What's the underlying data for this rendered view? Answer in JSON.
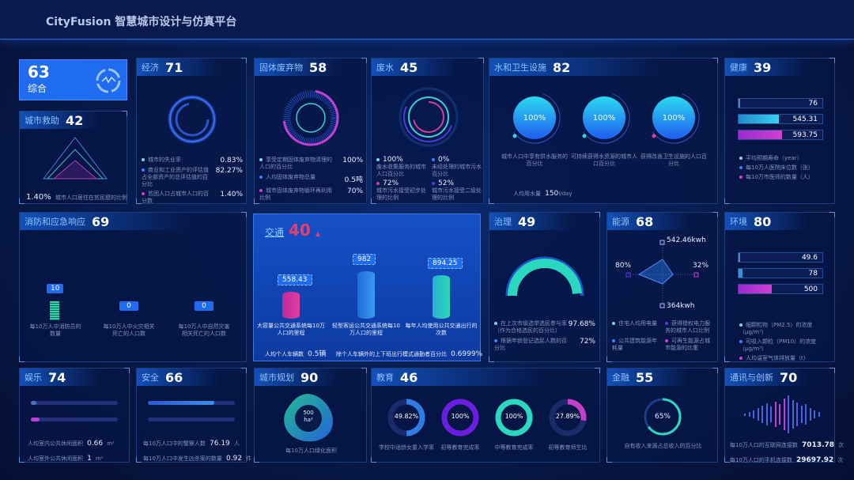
{
  "app": {
    "title": "CityFusion 智慧城市设计与仿真平台"
  },
  "colors": {
    "accent": "#1f6cf0",
    "cyan": "#2ad8e0",
    "magenta": "#d13fd0",
    "traffic_score": "#e2406e"
  },
  "overall": {
    "score": "63",
    "label": "综合",
    "icon": "city-network-icon"
  },
  "aid": {
    "label": "城市救助",
    "score": "42",
    "value": "1.40%",
    "desc": "城市人口居住在贫民窟的比例"
  },
  "economy": {
    "label": "经济",
    "score": "71",
    "items": [
      {
        "text": "城市的失业率",
        "value": "0.83%"
      },
      {
        "text": "商业和工业资产的评估值占全部资产的总评估值的百分比",
        "value": "82.27%"
      },
      {
        "text": "贫困人口占城市人口的百分数",
        "value": "1.40%"
      }
    ]
  },
  "waste": {
    "label": "固体废弃物",
    "score": "58",
    "items": [
      {
        "text": "享受定期固体废弃物清理的人口的百分比",
        "value": "100%"
      },
      {
        "text": "人均固体废弃物总量",
        "value": "0.5吨"
      },
      {
        "text": "城市固体废弃物循环再利用比例",
        "value": "70%"
      }
    ]
  },
  "wastewater": {
    "label": "废水",
    "score": "45",
    "items": [
      {
        "value": "100%",
        "text": "废水收集服务的城市人口百分比"
      },
      {
        "value": "0%",
        "text": "未经处理的城市污水百分比"
      },
      {
        "value": "72%",
        "text": "城市污水接受初步处理的比例"
      },
      {
        "value": "52%",
        "text": "城市污水接受二级处理的比例"
      }
    ]
  },
  "water": {
    "label": "水和卫生设施",
    "score": "82",
    "items": [
      {
        "value": "100%",
        "text": "城市人口中享有供水服务的百分比"
      },
      {
        "value": "100%",
        "text": "可持续获得水资源的城市人口百分比"
      },
      {
        "value": "100%",
        "text": "获得改善卫生设施的人口百分比"
      }
    ],
    "usage_label": "人均用水量",
    "usage_value": "150",
    "usage_unit": "l/day"
  },
  "health": {
    "label": "健康",
    "score": "39",
    "bars": [
      {
        "value": "76",
        "fill": 0.02
      },
      {
        "value": "545.31",
        "fill": 0.48
      },
      {
        "value": "593.75",
        "fill": 0.52
      }
    ],
    "legend": [
      "平均预期寿命（year）",
      "每10万人医院床位数（张）",
      "每10万市医师的数量（人）"
    ]
  },
  "fire": {
    "label": "消防和应急响应",
    "score": "69",
    "items": [
      {
        "value": "10",
        "text": "每10万人中消防员的数量"
      },
      {
        "value": "0",
        "text": "每10万人中火灾相关死亡的人口数"
      },
      {
        "value": "0",
        "text": "每10万人中自然灾害相关死亡的人口数"
      }
    ]
  },
  "traffic": {
    "label": "交通",
    "score": "40",
    "trend": "▲",
    "items": [
      {
        "value": "558.43",
        "text": "大容量公共交通系统每10万人口的里程"
      },
      {
        "value": "982",
        "text": "轻型客运公共交通系统每10万人口的里程"
      },
      {
        "value": "894.25",
        "text": "每年人均使用公共交通出行的次数"
      }
    ],
    "car_label": "人均个人车辆数",
    "car_value": "0.5辆",
    "commute_label": "除个人车辆外的上下班出行模式通勤者百分比",
    "commute_value": "0.6999%"
  },
  "governance": {
    "label": "治理",
    "score": "49",
    "gauge": 0.9768,
    "items": [
      {
        "text": "在上次市级选举选民参与率（作为合格选民的百分比）",
        "value": "97.68%"
      },
      {
        "text": "根据年龄登记选民人数的百分比",
        "value": "72%"
      }
    ]
  },
  "energy": {
    "label": "能源",
    "score": "68",
    "radar": {
      "top": "542.46kwh",
      "left": "80%",
      "right": "32%",
      "bottom": "364kwh"
    },
    "legend": [
      "住宅人均用电量",
      "获得授权电力服务的城市人口比例",
      "公共建筑能源年耗量",
      "可再生能源占城市能源的比重"
    ]
  },
  "environment": {
    "label": "环境",
    "score": "80",
    "bars": [
      {
        "value": "49.6",
        "fill": 0.02
      },
      {
        "value": "78",
        "fill": 0.05
      },
      {
        "value": "500",
        "fill": 0.4
      }
    ],
    "legend": [
      "细颗粒物（PM2.5）的浓度（μg/m³）",
      "可吸入颗粒（PM10）的浓度（μg/m³）",
      "人均温室气体排放量（t）"
    ]
  },
  "recreation": {
    "label": "娱乐",
    "score": "74",
    "tracks": [
      0.06,
      0.1
    ],
    "items": [
      {
        "text": "人均室内公共休闲面积",
        "value": "0.66",
        "unit": "m²"
      },
      {
        "text": "人均室外公共休闲面积",
        "value": "1",
        "unit": "m²"
      }
    ]
  },
  "safety": {
    "label": "安全",
    "score": "66",
    "tracks": [
      0.76,
      0.0
    ],
    "items": [
      {
        "text": "每10万人口中的警察人数",
        "value": "76.19",
        "unit": "人"
      },
      {
        "text": "每10万人口中发生凶杀案的数量",
        "value": "0.92",
        "unit": "件"
      }
    ]
  },
  "planning": {
    "label": "城市规划",
    "score": "90",
    "value": "500",
    "unit": "ha²",
    "text": "每10万人口绿化面积"
  },
  "education": {
    "label": "教育",
    "score": "46",
    "items": [
      {
        "value": "49.82%",
        "pct": 0.4982,
        "color": "#2f7de0",
        "text": "学校中适龄女童入学率"
      },
      {
        "value": "100%",
        "pct": 1,
        "color": "#6a1ee0",
        "text": "初等教育完成率"
      },
      {
        "value": "100%",
        "pct": 1,
        "color": "#2ad8c0",
        "text": "中等教育完成率"
      },
      {
        "value": "27.89%",
        "pct": 0.2789,
        "color": "#c43fc8",
        "text": "初等教育师生比"
      }
    ]
  },
  "finance": {
    "label": "金融",
    "score": "55",
    "value": "65%",
    "pct": 0.65,
    "text": "自有收入来源占总收入的百分比"
  },
  "comms": {
    "label": "通讯与创新",
    "score": "70",
    "items": [
      {
        "text": "每10万人口的互联网连接数",
        "value": "7013.78",
        "unit": "次"
      },
      {
        "text": "每10万人口的手机连接数",
        "value": "29697.92",
        "unit": "次"
      }
    ]
  }
}
